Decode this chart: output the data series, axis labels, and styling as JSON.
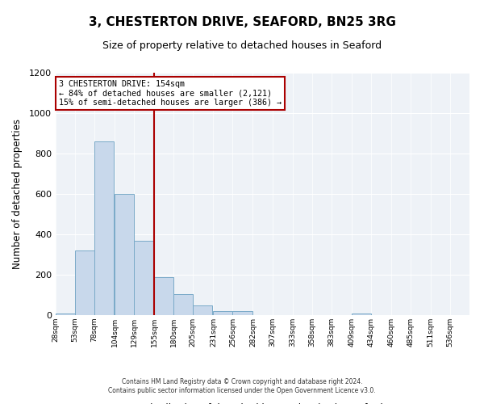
{
  "title": "3, CHESTERTON DRIVE, SEAFORD, BN25 3RG",
  "subtitle": "Size of property relative to detached houses in Seaford",
  "xlabel": "Distribution of detached houses by size in Seaford",
  "ylabel": "Number of detached properties",
  "bar_left_edges": [
    28,
    53,
    78,
    104,
    129,
    155,
    180,
    205,
    231,
    256,
    282,
    307,
    333,
    358,
    383,
    409,
    434,
    460,
    485,
    511
  ],
  "bar_heights": [
    10,
    320,
    860,
    600,
    370,
    190,
    105,
    47,
    20,
    20,
    0,
    0,
    0,
    0,
    0,
    10,
    0,
    0,
    0,
    0
  ],
  "bin_width": 25,
  "bar_facecolor": "#c8d8eb",
  "bar_edgecolor": "#7aaac8",
  "vline_color": "#aa0000",
  "vline_x": 155,
  "annotation_title": "3 CHESTERTON DRIVE: 154sqm",
  "annotation_line1": "← 84% of detached houses are smaller (2,121)",
  "annotation_line2": "15% of semi-detached houses are larger (386) →",
  "annotation_box_color": "#aa0000",
  "ylim": [
    0,
    1200
  ],
  "xlim": [
    28,
    561
  ],
  "tick_labels": [
    "28sqm",
    "53sqm",
    "78sqm",
    "104sqm",
    "129sqm",
    "155sqm",
    "180sqm",
    "205sqm",
    "231sqm",
    "256sqm",
    "282sqm",
    "307sqm",
    "333sqm",
    "358sqm",
    "383sqm",
    "409sqm",
    "434sqm",
    "460sqm",
    "485sqm",
    "511sqm",
    "536sqm"
  ],
  "tick_positions": [
    28,
    53,
    78,
    104,
    129,
    155,
    180,
    205,
    231,
    256,
    282,
    307,
    333,
    358,
    383,
    409,
    434,
    460,
    485,
    511,
    536
  ],
  "yticks": [
    0,
    200,
    400,
    600,
    800,
    1000,
    1200
  ],
  "footer1": "Contains HM Land Registry data © Crown copyright and database right 2024.",
  "footer2": "Contains public sector information licensed under the Open Government Licence v3.0.",
  "bg_color": "#eef2f7",
  "grid_color": "#ffffff"
}
